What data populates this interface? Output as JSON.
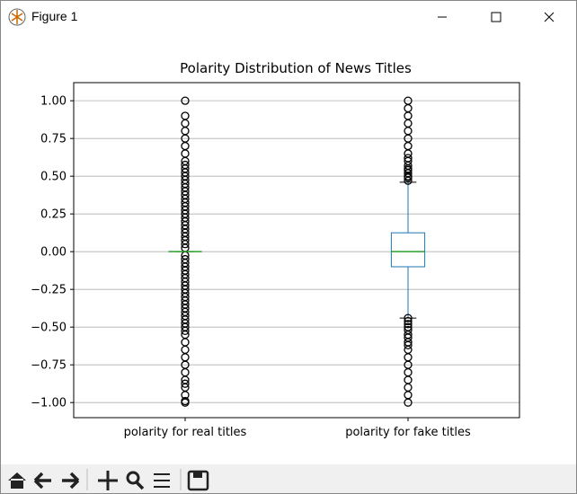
{
  "window": {
    "title": "Figure 1"
  },
  "chart_data": {
    "type": "box",
    "title": "Polarity Distribution of News Titles",
    "categories": [
      "polarity for real titles",
      "polarity for fake titles"
    ],
    "boxes": [
      {
        "whislo": 0,
        "q1": 0,
        "med": 0,
        "q3": 0,
        "whishi": 0,
        "fliers": [
          -1,
          -0.99,
          -0.95,
          -0.9,
          -0.875,
          -0.85,
          -0.8,
          -0.75,
          -0.7,
          -0.65,
          -0.6,
          -0.55,
          -0.525,
          -0.5,
          -0.475,
          -0.45,
          -0.425,
          -0.4,
          -0.375,
          -0.35,
          -0.325,
          -0.3,
          -0.275,
          -0.25,
          -0.225,
          -0.2,
          -0.175,
          -0.15,
          -0.125,
          -0.1,
          -0.075,
          -0.05,
          -0.025,
          0.025,
          0.05,
          0.075,
          0.1,
          0.125,
          0.15,
          0.175,
          0.2,
          0.225,
          0.25,
          0.275,
          0.3,
          0.325,
          0.35,
          0.375,
          0.4,
          0.425,
          0.45,
          0.475,
          0.5,
          0.525,
          0.55,
          0.575,
          0.6,
          0.65,
          0.7,
          0.75,
          0.8,
          0.85,
          0.9,
          1
        ]
      },
      {
        "whislo": -0.44,
        "q1": -0.1,
        "med": 0,
        "q3": 0.125,
        "whishi": 0.46,
        "fliers": [
          0.47,
          0.49,
          0.5,
          0.52,
          0.54,
          0.55,
          0.57,
          0.6,
          0.62,
          0.65,
          0.7,
          0.75,
          0.8,
          0.85,
          0.9,
          0.95,
          1,
          -0.44,
          -0.46,
          -0.48,
          -0.5,
          -0.52,
          -0.55,
          -0.57,
          -0.6,
          -0.62,
          -0.65,
          -0.7,
          -0.75,
          -0.8,
          -0.85,
          -0.9,
          -0.95,
          -1
        ]
      }
    ],
    "box_color": "#1f77b4",
    "median_color": "#2ca02c",
    "flier_color": "#000000",
    "ylim": [
      -1.1,
      1.12
    ],
    "yticks": [
      {
        "value": -1,
        "label": "−1.00"
      },
      {
        "value": -0.75,
        "label": "−0.75"
      },
      {
        "value": -0.5,
        "label": "−0.50"
      },
      {
        "value": -0.25,
        "label": "−0.25"
      },
      {
        "value": 0,
        "label": "0.00"
      },
      {
        "value": 0.25,
        "label": "0.25"
      },
      {
        "value": 0.5,
        "label": "0.50"
      },
      {
        "value": 0.75,
        "label": "0.75"
      },
      {
        "value": 1,
        "label": "1.00"
      }
    ],
    "grid": true
  }
}
